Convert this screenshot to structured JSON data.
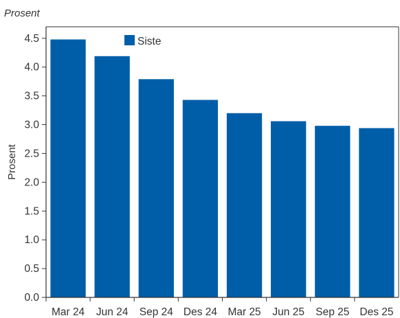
{
  "unit_label": "Prosent",
  "chart_data": {
    "type": "bar",
    "title": "",
    "xlabel": "",
    "ylabel": "Prosent",
    "categories": [
      "Mar 24",
      "Jun 24",
      "Sep 24",
      "Des 24",
      "Mar 25",
      "Jun 25",
      "Sep 25",
      "Des 25"
    ],
    "series": [
      {
        "name": "Siste",
        "values": [
          4.48,
          4.19,
          3.79,
          3.43,
          3.2,
          3.06,
          2.98,
          2.94
        ],
        "color": "#005ea8"
      }
    ],
    "ylim": [
      0,
      4.7
    ],
    "yticks": [
      "0.0",
      "0.5",
      "1.0",
      "1.5",
      "2.0",
      "2.5",
      "3.0",
      "3.5",
      "4.0",
      "4.5"
    ],
    "grid": false,
    "legend_position": "top-left"
  }
}
